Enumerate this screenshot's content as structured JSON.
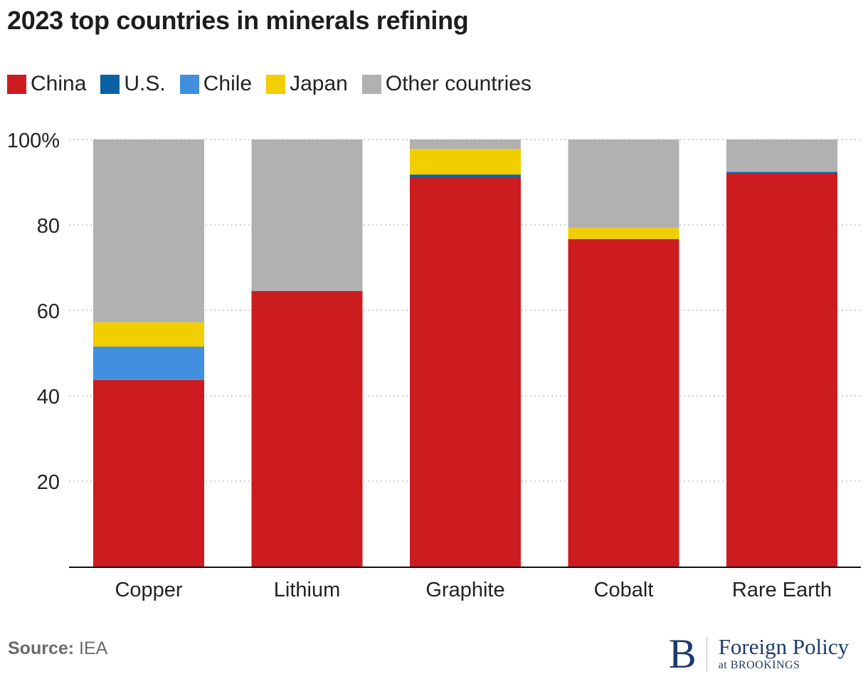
{
  "chart_data": {
    "type": "bar",
    "stacked": true,
    "title": "2023 top countries in minerals refining",
    "xlabel": "",
    "ylabel": "",
    "ylim": [
      0,
      100
    ],
    "yticks": [
      {
        "value": 20,
        "label": "20"
      },
      {
        "value": 40,
        "label": "40"
      },
      {
        "value": 60,
        "label": "60"
      },
      {
        "value": 80,
        "label": "80"
      },
      {
        "value": 100,
        "label": "100%"
      }
    ],
    "grid": true,
    "legend_position": "top-left",
    "categories": [
      "Copper",
      "Lithium",
      "Graphite",
      "Cobalt",
      "Rare Earth"
    ],
    "series": [
      {
        "name": "China",
        "color": "#cc1c1f",
        "values": [
          43.7,
          64.5,
          91.0,
          76.7,
          92.0
        ]
      },
      {
        "name": "U.S.",
        "color": "#0a62a4",
        "values": [
          0,
          0,
          0.8,
          0,
          0.4
        ]
      },
      {
        "name": "Chile",
        "color": "#418fde",
        "values": [
          7.8,
          0,
          0,
          0,
          0
        ]
      },
      {
        "name": "Japan",
        "color": "#f1ce00",
        "values": [
          5.7,
          0,
          6.0,
          2.6,
          0
        ]
      },
      {
        "name": "Other countries",
        "color": "#b1b1b1",
        "values": [
          42.8,
          35.5,
          2.2,
          20.7,
          7.6
        ]
      }
    ]
  },
  "footer": {
    "source_label": "Source:",
    "source_value": "IEA",
    "logo_letter": "B",
    "logo_title": "Foreign Policy",
    "logo_subtitle": "at BROOKINGS"
  }
}
